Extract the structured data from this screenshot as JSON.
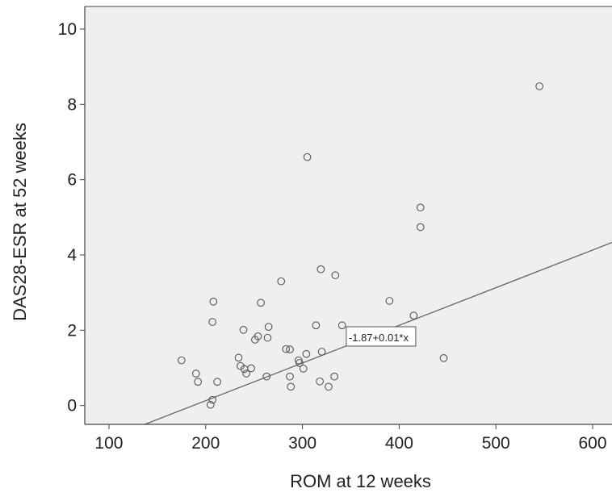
{
  "chart_data": {
    "type": "scatter",
    "title": "",
    "xlabel": "ROM at 12 weeks",
    "ylabel": "DAS28-ESR at 52 weeks",
    "xlim": [
      75,
      620
    ],
    "ylim": [
      -0.5,
      10.6
    ],
    "xticks": [
      100,
      200,
      300,
      400,
      500,
      600
    ],
    "yticks": [
      0,
      2,
      4,
      6,
      8,
      10
    ],
    "grid": false,
    "legend": "none",
    "colors": {
      "plot_bg": "#efefef",
      "marker": "#555555",
      "line": "#666666",
      "axis": "#444444"
    },
    "points": [
      [
        175,
        1.2
      ],
      [
        190,
        0.85
      ],
      [
        192,
        0.63
      ],
      [
        205,
        0.02
      ],
      [
        207,
        0.15
      ],
      [
        207,
        2.22
      ],
      [
        208,
        2.76
      ],
      [
        212,
        0.63
      ],
      [
        234,
        1.27
      ],
      [
        236,
        1.05
      ],
      [
        240,
        0.97
      ],
      [
        242,
        0.85
      ],
      [
        247,
        0.99
      ],
      [
        239,
        2.01
      ],
      [
        251,
        1.75
      ],
      [
        254,
        1.84
      ],
      [
        257,
        2.73
      ],
      [
        263,
        0.77
      ],
      [
        264,
        1.8
      ],
      [
        265,
        2.09
      ],
      [
        278,
        3.3
      ],
      [
        283,
        1.5
      ],
      [
        287,
        1.49
      ],
      [
        287,
        0.77
      ],
      [
        288,
        0.5
      ],
      [
        296,
        1.2
      ],
      [
        297,
        1.13
      ],
      [
        301,
        0.98
      ],
      [
        304,
        1.37
      ],
      [
        305,
        6.6
      ],
      [
        314,
        2.13
      ],
      [
        318,
        0.64
      ],
      [
        319,
        3.62
      ],
      [
        320,
        1.43
      ],
      [
        327,
        0.5
      ],
      [
        333,
        0.77
      ],
      [
        334,
        3.46
      ],
      [
        341,
        2.13
      ],
      [
        381,
        1.68
      ],
      [
        390,
        2.78
      ],
      [
        415,
        2.39
      ],
      [
        422,
        4.74
      ],
      [
        422,
        5.26
      ],
      [
        446,
        1.26
      ],
      [
        545,
        8.48
      ]
    ],
    "fit_line": {
      "intercept": -1.87,
      "slope": 0.01,
      "label": "-1.87+0.01*x",
      "label_anchor": [
        342,
        1.9
      ]
    }
  }
}
